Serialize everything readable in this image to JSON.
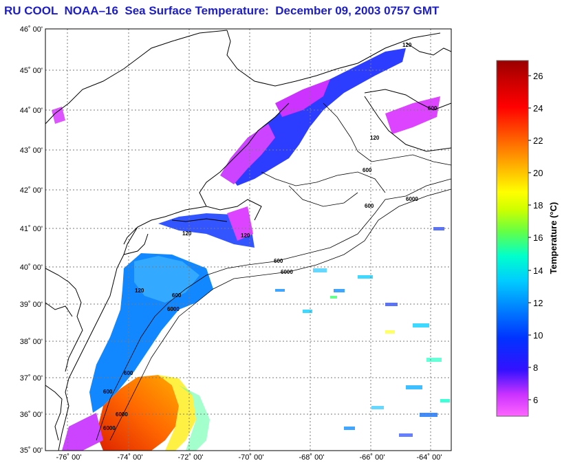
{
  "title": "RU COOL  NOAA–16  Sea Surface Temperature:  December 09, 2003 0757 GMT",
  "map": {
    "lat_labels": [
      "46˚ 00'",
      "45˚ 00'",
      "44˚ 00'",
      "43˚ 00'",
      "42˚ 00'",
      "41˚ 00'",
      "40˚ 00'",
      "39˚ 00'",
      "38˚ 00'",
      "37˚ 00'",
      "36˚ 00'",
      "35˚ 00'"
    ],
    "lon_labels": [
      "-76˚ 00'",
      "-74˚ 00'",
      "-72˚ 00'",
      "-70˚ 00'",
      "-68˚ 00'",
      "-66˚ 00'",
      "-64˚ 00'"
    ],
    "contour_labels": [
      "120",
      "600",
      "6000",
      "600",
      "6000",
      "120",
      "600",
      "600",
      "6000",
      "120",
      "600",
      "6000",
      "120",
      "600",
      "120",
      "600",
      "6000"
    ],
    "colors": {
      "grid": "#7a7a7a",
      "coast": "#000000",
      "frame": "#000000"
    }
  },
  "colorbar": {
    "label": "Temperature (°C)",
    "ticks": [
      "26",
      "24",
      "22",
      "20",
      "18",
      "16",
      "14",
      "12",
      "10",
      "8",
      "6"
    ],
    "stops": [
      "#ff66ff",
      "#cc33ff",
      "#3311ff",
      "#0033ff",
      "#0088ff",
      "#00ccff",
      "#00ffcc",
      "#66ff44",
      "#ccff00",
      "#ffff00",
      "#ffaa00",
      "#ff5500",
      "#ff0000",
      "#cc0000",
      "#990000"
    ]
  }
}
